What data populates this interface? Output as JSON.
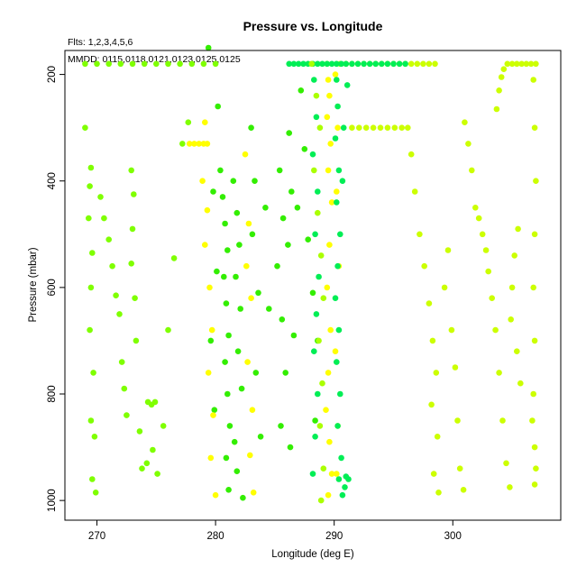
{
  "chart_data": {
    "type": "scatter",
    "title": "Pressure vs. Longitude",
    "annotations": {
      "fits": "Flts: 1,2,3,4,5,6",
      "mmdd": "MMDD: 0115,0118,0121,0123,0125,0125"
    },
    "xlabel": "Longitude (deg E)",
    "ylabel": "Pressure (mbar)",
    "xlim": [
      267.3,
      309.1
    ],
    "ylim": [
      1037,
      155
    ],
    "y_inverted": true,
    "x_ticks": [
      "270",
      "280",
      "290",
      "300"
    ],
    "y_ticks": [
      "200",
      "400",
      "600",
      "800",
      "1000"
    ],
    "grid": false,
    "colors": [
      "#7fff00",
      "#33ee00",
      "#ffff00",
      "#ccff00",
      "#00ee55",
      "#aaff00"
    ],
    "series": [
      {
        "color": "#7fff00",
        "points": [
          [
            269,
            180
          ],
          [
            270,
            180
          ],
          [
            271,
            180
          ],
          [
            272,
            180
          ],
          [
            273,
            180
          ],
          [
            274,
            180
          ],
          [
            275,
            180
          ],
          [
            276,
            180
          ],
          [
            277,
            180
          ],
          [
            278,
            180
          ],
          [
            279,
            180
          ],
          [
            280,
            180
          ],
          [
            269,
            300
          ],
          [
            269.5,
            375
          ],
          [
            269.4,
            410
          ],
          [
            269.3,
            470
          ],
          [
            269.6,
            535
          ],
          [
            269.5,
            600
          ],
          [
            269.4,
            680
          ],
          [
            269.7,
            760
          ],
          [
            269.5,
            850
          ],
          [
            269.8,
            880
          ],
          [
            269.6,
            960
          ],
          [
            269.9,
            985
          ],
          [
            270.3,
            430
          ],
          [
            270.6,
            470
          ],
          [
            271,
            510
          ],
          [
            271.3,
            560
          ],
          [
            271.6,
            615
          ],
          [
            271.9,
            650
          ],
          [
            272.1,
            740
          ],
          [
            272.3,
            790
          ],
          [
            272.5,
            840
          ],
          [
            272.9,
            380
          ],
          [
            273.1,
            425
          ],
          [
            273,
            490
          ],
          [
            272.9,
            555
          ],
          [
            273.2,
            620
          ],
          [
            273.3,
            700
          ],
          [
            273.6,
            870
          ],
          [
            273.8,
            940
          ],
          [
            274.3,
            815
          ],
          [
            274.6,
            820
          ],
          [
            274.9,
            815
          ],
          [
            274.2,
            930
          ],
          [
            274.7,
            905
          ],
          [
            275.1,
            950
          ],
          [
            275.6,
            860
          ],
          [
            276,
            680
          ],
          [
            276.5,
            545
          ],
          [
            277.2,
            330
          ],
          [
            277.7,
            290
          ]
        ]
      },
      {
        "color": "#33ee00",
        "points": [
          [
            280.4,
            380
          ],
          [
            280.6,
            430
          ],
          [
            280.8,
            480
          ],
          [
            281,
            530
          ],
          [
            280.7,
            580
          ],
          [
            280.9,
            630
          ],
          [
            281.1,
            690
          ],
          [
            280.8,
            740
          ],
          [
            281,
            800
          ],
          [
            281.2,
            860
          ],
          [
            280.9,
            920
          ],
          [
            281.1,
            980
          ],
          [
            279.8,
            420
          ],
          [
            280.1,
            570
          ],
          [
            279.6,
            700
          ],
          [
            279.9,
            830
          ],
          [
            280.2,
            260
          ],
          [
            279.4,
            150
          ],
          [
            281.5,
            400
          ],
          [
            281.8,
            460
          ],
          [
            282,
            520
          ],
          [
            281.7,
            580
          ],
          [
            282.1,
            640
          ],
          [
            281.9,
            720
          ],
          [
            282.2,
            790
          ],
          [
            281.6,
            890
          ],
          [
            281.8,
            945
          ],
          [
            282.3,
            995
          ],
          [
            283,
            300
          ],
          [
            283.3,
            400
          ],
          [
            283.1,
            500
          ],
          [
            283.6,
            610
          ],
          [
            283.4,
            760
          ],
          [
            283.8,
            880
          ],
          [
            284.2,
            450
          ],
          [
            284.5,
            640
          ],
          [
            285.4,
            380
          ],
          [
            285.7,
            470
          ],
          [
            285.2,
            560
          ],
          [
            285.6,
            660
          ],
          [
            285.9,
            760
          ],
          [
            285.5,
            860
          ],
          [
            286.2,
            310
          ],
          [
            286.4,
            420
          ],
          [
            286.1,
            520
          ],
          [
            286.6,
            690
          ],
          [
            286.3,
            900
          ],
          [
            286.9,
            450
          ],
          [
            287.2,
            230
          ],
          [
            287.5,
            340
          ],
          [
            287.8,
            510
          ],
          [
            288.2,
            610
          ],
          [
            288.6,
            700
          ],
          [
            288.4,
            850
          ]
        ]
      },
      {
        "color": "#ffff00",
        "points": [
          [
            277.8,
            330
          ],
          [
            278.2,
            330
          ],
          [
            278.6,
            330
          ],
          [
            279,
            330
          ],
          [
            279.3,
            330
          ],
          [
            279.1,
            290
          ],
          [
            278.9,
            400
          ],
          [
            279.3,
            455
          ],
          [
            279.1,
            520
          ],
          [
            279.5,
            600
          ],
          [
            279.7,
            680
          ],
          [
            279.4,
            760
          ],
          [
            279.8,
            840
          ],
          [
            279.6,
            920
          ],
          [
            280,
            990
          ],
          [
            282.5,
            350
          ],
          [
            282.8,
            480
          ],
          [
            282.6,
            560
          ],
          [
            283,
            620
          ],
          [
            282.7,
            740
          ],
          [
            283.1,
            830
          ],
          [
            282.9,
            915
          ],
          [
            283.2,
            985
          ],
          [
            289.4,
            180
          ],
          [
            289.5,
            210
          ],
          [
            289.6,
            240
          ],
          [
            289.4,
            280
          ],
          [
            289.7,
            330
          ],
          [
            289.5,
            380
          ],
          [
            289.8,
            440
          ],
          [
            289.6,
            520
          ],
          [
            289.4,
            600
          ],
          [
            289.7,
            680
          ],
          [
            289.5,
            760
          ],
          [
            289.3,
            830
          ],
          [
            289.6,
            890
          ],
          [
            289.8,
            950
          ],
          [
            289.5,
            990
          ],
          [
            290.1,
            200
          ],
          [
            290.3,
            300
          ],
          [
            290.2,
            420
          ],
          [
            290.4,
            560
          ],
          [
            290.1,
            720
          ],
          [
            290.3,
            860
          ],
          [
            290.2,
            950
          ]
        ]
      },
      {
        "color": "#ccff00",
        "points": [
          [
            290.5,
            180
          ],
          [
            291,
            180
          ],
          [
            291.5,
            180
          ],
          [
            292,
            180
          ],
          [
            292.5,
            180
          ],
          [
            293,
            180
          ],
          [
            293.5,
            180
          ],
          [
            294,
            180
          ],
          [
            294.5,
            180
          ],
          [
            295,
            180
          ],
          [
            295.5,
            180
          ],
          [
            296,
            180
          ],
          [
            296.5,
            180
          ],
          [
            297,
            180
          ],
          [
            297.5,
            180
          ],
          [
            298,
            180
          ],
          [
            298.5,
            180
          ],
          [
            291.5,
            300
          ],
          [
            292.1,
            300
          ],
          [
            292.7,
            300
          ],
          [
            293.3,
            300
          ],
          [
            293.9,
            300
          ],
          [
            294.5,
            300
          ],
          [
            295.1,
            300
          ],
          [
            295.7,
            300
          ],
          [
            296.2,
            300
          ],
          [
            296.5,
            350
          ],
          [
            296.8,
            420
          ],
          [
            297.2,
            500
          ],
          [
            297.6,
            560
          ],
          [
            298,
            630
          ],
          [
            298.3,
            700
          ],
          [
            298.6,
            760
          ],
          [
            298.2,
            820
          ],
          [
            298.7,
            880
          ],
          [
            298.4,
            950
          ],
          [
            298.8,
            985
          ],
          [
            299.3,
            600
          ],
          [
            299.6,
            530
          ],
          [
            299.9,
            680
          ],
          [
            300.2,
            750
          ],
          [
            300.4,
            850
          ],
          [
            300.6,
            940
          ],
          [
            300.9,
            980
          ],
          [
            301,
            290
          ],
          [
            301.3,
            330
          ],
          [
            301.6,
            380
          ],
          [
            301.9,
            450
          ],
          [
            302.2,
            470
          ],
          [
            302.5,
            500
          ],
          [
            302.8,
            530
          ],
          [
            303,
            570
          ],
          [
            303.3,
            620
          ],
          [
            303.6,
            680
          ],
          [
            303.9,
            760
          ],
          [
            304.2,
            850
          ],
          [
            304.5,
            930
          ],
          [
            304.8,
            975
          ],
          [
            303.7,
            265
          ],
          [
            303.9,
            230
          ],
          [
            304.1,
            205
          ],
          [
            304.3,
            190
          ],
          [
            304.6,
            180
          ],
          [
            305,
            180
          ],
          [
            305.4,
            180
          ],
          [
            305.8,
            180
          ],
          [
            306.2,
            180
          ],
          [
            306.6,
            180
          ],
          [
            307,
            180
          ],
          [
            306.8,
            210
          ],
          [
            306.9,
            300
          ],
          [
            307,
            400
          ],
          [
            306.9,
            500
          ],
          [
            306.8,
            600
          ],
          [
            306.9,
            700
          ],
          [
            306.8,
            800
          ],
          [
            306.7,
            850
          ],
          [
            306.9,
            900
          ],
          [
            307,
            940
          ],
          [
            306.9,
            970
          ],
          [
            305.5,
            490
          ],
          [
            305.2,
            540
          ],
          [
            305,
            600
          ],
          [
            304.9,
            660
          ],
          [
            305.4,
            720
          ],
          [
            305.7,
            780
          ]
        ]
      },
      {
        "color": "#00ee55",
        "points": [
          [
            286.2,
            180
          ],
          [
            286.6,
            180
          ],
          [
            287,
            180
          ],
          [
            287.4,
            180
          ],
          [
            287.8,
            180
          ],
          [
            288.2,
            180
          ],
          [
            288.6,
            180
          ],
          [
            289,
            180
          ],
          [
            289.4,
            180
          ],
          [
            289.8,
            180
          ],
          [
            290.2,
            180
          ],
          [
            290.6,
            180
          ],
          [
            291,
            180
          ],
          [
            291.5,
            180
          ],
          [
            292,
            180
          ],
          [
            292.5,
            180
          ],
          [
            293,
            180
          ],
          [
            293.5,
            180
          ],
          [
            294,
            180
          ],
          [
            294.5,
            180
          ],
          [
            295,
            180
          ],
          [
            295.5,
            180
          ],
          [
            296,
            180
          ],
          [
            290.2,
            210
          ],
          [
            290.3,
            260
          ],
          [
            290.1,
            320
          ],
          [
            290.4,
            380
          ],
          [
            290.2,
            440
          ],
          [
            290.5,
            500
          ],
          [
            290.3,
            560
          ],
          [
            290.1,
            620
          ],
          [
            290.4,
            680
          ],
          [
            290.2,
            740
          ],
          [
            290.5,
            800
          ],
          [
            290.3,
            860
          ],
          [
            290.6,
            920
          ],
          [
            290.4,
            960
          ],
          [
            290.7,
            990
          ],
          [
            291,
            955
          ],
          [
            291.2,
            960
          ],
          [
            290.9,
            975
          ],
          [
            290.7,
            400
          ],
          [
            290.8,
            300
          ],
          [
            291.1,
            220
          ],
          [
            288.3,
            210
          ],
          [
            288.5,
            280
          ],
          [
            288.2,
            350
          ],
          [
            288.6,
            420
          ],
          [
            288.4,
            500
          ],
          [
            288.7,
            580
          ],
          [
            288.5,
            650
          ],
          [
            288.3,
            720
          ],
          [
            288.6,
            800
          ],
          [
            288.4,
            880
          ],
          [
            288.2,
            950
          ]
        ]
      },
      {
        "color": "#aaff00",
        "points": [
          [
            288.1,
            180
          ],
          [
            288.5,
            240
          ],
          [
            288.8,
            300
          ],
          [
            288.3,
            380
          ],
          [
            288.6,
            460
          ],
          [
            288.9,
            540
          ],
          [
            289.1,
            620
          ],
          [
            288.7,
            700
          ],
          [
            289,
            780
          ],
          [
            288.8,
            860
          ],
          [
            289.1,
            940
          ],
          [
            288.9,
            1000
          ]
        ]
      }
    ]
  }
}
